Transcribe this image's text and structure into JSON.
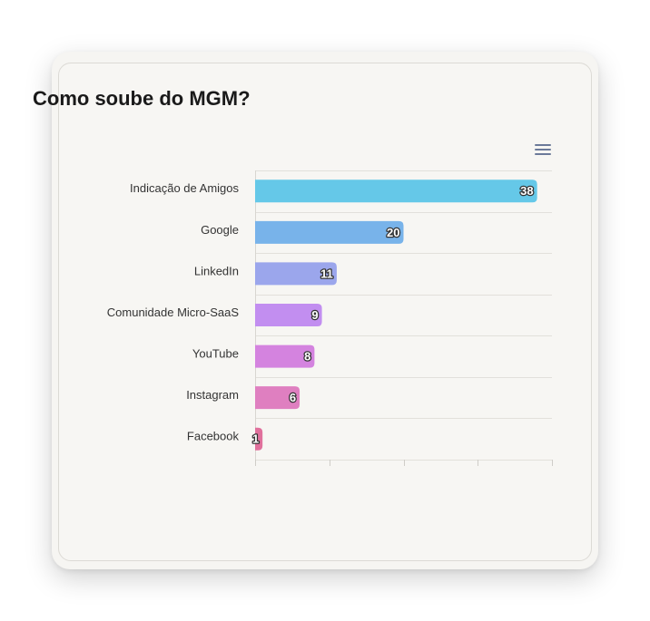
{
  "card": {
    "title": "Como soube do MGM?"
  },
  "toolbar": {
    "menu_icon": "hamburger-menu-icon"
  },
  "chart_data": {
    "type": "bar",
    "orientation": "horizontal",
    "title": "Como soube do MGM?",
    "xlabel": "",
    "ylabel": "",
    "grid": true,
    "xlim": [
      0,
      40
    ],
    "categories": [
      "Indicação de Amigos",
      "Google",
      "LinkedIn",
      "Comunidade Micro-SaaS",
      "YouTube",
      "Instagram",
      "Facebook"
    ],
    "values": [
      38,
      20,
      11,
      9,
      8,
      6,
      1
    ],
    "colors": [
      "#65c8e8",
      "#78b3ea",
      "#9ba6ec",
      "#c28ef0",
      "#d483df",
      "#df7fc0",
      "#e0709c"
    ],
    "data_labels": true
  }
}
